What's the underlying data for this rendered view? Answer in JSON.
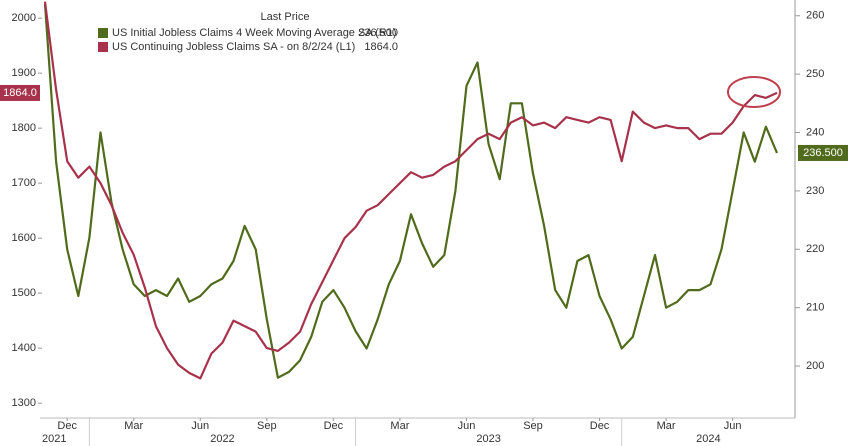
{
  "chart_data": {
    "type": "line",
    "legend_title": "Last Price",
    "categories": [
      null,
      null,
      "Dec",
      null,
      null,
      null,
      null,
      null,
      "Mar",
      null,
      null,
      null,
      null,
      null,
      "Jun",
      null,
      null,
      null,
      null,
      null,
      "Sep",
      null,
      null,
      null,
      null,
      null,
      "Dec",
      null,
      null,
      null,
      null,
      null,
      "Mar",
      null,
      null,
      null,
      null,
      null,
      "Jun",
      null,
      null,
      null,
      null,
      null,
      "Sep",
      null,
      null,
      null,
      null,
      null,
      "Dec",
      null,
      null,
      null,
      null,
      null,
      "Mar",
      null,
      null,
      null,
      null,
      null,
      "Jun",
      null,
      null,
      null,
      null
    ],
    "years": [
      "2021",
      "2022",
      "2023",
      "2024"
    ],
    "series": [
      {
        "name": "US Initial Jobless Claims 4 Week Moving Average SA (R1)",
        "color": "#4f6b1b",
        "axis": "y2",
        "values": [
          262,
          235,
          220,
          212,
          222,
          240,
          228,
          220,
          214,
          212,
          213,
          212,
          215,
          211,
          212,
          214,
          215,
          218,
          224,
          220,
          208,
          198,
          199,
          201,
          205,
          211,
          213,
          210,
          206,
          203,
          208,
          214,
          218,
          226,
          221,
          217,
          219,
          230,
          248,
          252,
          238,
          232,
          245,
          245,
          233,
          224,
          213,
          210,
          218,
          219,
          212,
          208,
          203,
          205,
          212,
          219,
          210,
          211,
          213,
          213,
          214,
          220,
          230,
          240,
          235,
          241,
          236.5
        ],
        "value_labels": [
          null,
          null,
          null,
          null,
          null,
          null,
          null,
          null,
          null,
          null,
          null,
          null,
          null,
          null,
          null,
          null,
          null,
          null,
          null,
          null,
          null,
          null,
          null,
          null,
          null,
          null,
          null,
          null,
          null,
          null,
          null,
          null,
          null,
          null,
          null,
          null,
          null,
          null,
          null,
          null,
          null,
          null,
          null,
          null,
          null,
          null,
          null,
          null,
          null,
          null,
          null,
          null,
          null,
          null,
          null,
          null,
          null,
          null,
          null,
          null,
          null,
          null,
          null,
          null,
          null,
          null,
          "236.500"
        ]
      },
      {
        "name": "US Continuing Jobless Claims SA - on 8/2/24 (L1)",
        "color": "#a8324c",
        "axis": "y",
        "values": [
          2030,
          1870,
          1740,
          1710,
          1730,
          1700,
          1660,
          1610,
          1570,
          1510,
          1440,
          1400,
          1370,
          1355,
          1345,
          1390,
          1410,
          1450,
          1440,
          1430,
          1400,
          1395,
          1410,
          1430,
          1480,
          1520,
          1560,
          1600,
          1620,
          1650,
          1660,
          1680,
          1700,
          1720,
          1710,
          1715,
          1730,
          1740,
          1760,
          1780,
          1790,
          1780,
          1810,
          1820,
          1805,
          1810,
          1800,
          1820,
          1815,
          1810,
          1820,
          1815,
          1740,
          1830,
          1810,
          1800,
          1805,
          1800,
          1800,
          1780,
          1790,
          1790,
          1810,
          1840,
          1860,
          1855,
          1864
        ],
        "value_labels": [
          null,
          null,
          null,
          null,
          null,
          null,
          null,
          null,
          null,
          null,
          null,
          null,
          null,
          null,
          null,
          null,
          null,
          null,
          null,
          null,
          null,
          null,
          null,
          null,
          null,
          null,
          null,
          null,
          null,
          null,
          null,
          null,
          null,
          null,
          null,
          null,
          null,
          null,
          null,
          null,
          null,
          null,
          null,
          null,
          null,
          null,
          null,
          null,
          null,
          null,
          null,
          null,
          null,
          null,
          null,
          null,
          null,
          null,
          null,
          null,
          null,
          null,
          null,
          null,
          null,
          null,
          "1864.0"
        ]
      }
    ],
    "ylim": [
      1273,
      2033
    ],
    "yticks": [
      1300,
      1400,
      1500,
      1600,
      1700,
      1800,
      1900,
      2000
    ],
    "y2lim": [
      191.1,
      262.7
    ],
    "y2ticks": [
      200,
      210,
      220,
      230,
      240,
      250,
      260
    ]
  }
}
